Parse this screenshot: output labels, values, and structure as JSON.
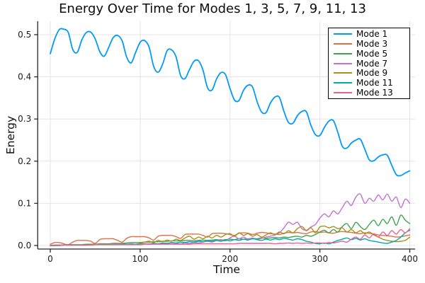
{
  "chart_data": {
    "type": "line",
    "title": "Energy Over Time for Modes 1, 3, 5, 7, 9, 11, 13",
    "xlabel": "Time",
    "ylabel": "Energy",
    "xlim": [
      -14,
      406
    ],
    "ylim": [
      -0.0084,
      0.532
    ],
    "xticks": [
      0,
      100,
      200,
      300,
      400
    ],
    "xtick_labels": [
      "0",
      "100",
      "200",
      "300",
      "400"
    ],
    "yticks": [
      0,
      0.1,
      0.2,
      0.3,
      0.4,
      0.5
    ],
    "ytick_labels": [
      "0.0",
      "0.1",
      "0.2",
      "0.3",
      "0.4",
      "0.5"
    ],
    "grid": true,
    "legend": {
      "position": "top-right"
    },
    "x": [
      0,
      5,
      10,
      15,
      20,
      25,
      30,
      35,
      40,
      45,
      50,
      55,
      60,
      65,
      70,
      75,
      80,
      85,
      90,
      95,
      100,
      105,
      110,
      115,
      120,
      125,
      130,
      135,
      140,
      145,
      150,
      155,
      160,
      165,
      170,
      175,
      180,
      185,
      190,
      195,
      200,
      205,
      210,
      215,
      220,
      225,
      230,
      235,
      240,
      245,
      250,
      255,
      260,
      265,
      270,
      275,
      280,
      285,
      290,
      295,
      300,
      305,
      310,
      315,
      320,
      325,
      330,
      335,
      340,
      345,
      350,
      355,
      360,
      365,
      370,
      375,
      380,
      385,
      390,
      395,
      400
    ],
    "series": [
      {
        "name": "Mode 1",
        "color": "#009AFA",
        "values": [
          0.455,
          0.49,
          0.512,
          0.513,
          0.505,
          0.465,
          0.458,
          0.487,
          0.505,
          0.506,
          0.49,
          0.46,
          0.449,
          0.47,
          0.493,
          0.498,
          0.485,
          0.447,
          0.433,
          0.458,
          0.482,
          0.486,
          0.47,
          0.425,
          0.411,
          0.43,
          0.462,
          0.464,
          0.447,
          0.403,
          0.396,
          0.418,
          0.437,
          0.438,
          0.415,
          0.374,
          0.369,
          0.395,
          0.41,
          0.405,
          0.372,
          0.345,
          0.344,
          0.368,
          0.38,
          0.376,
          0.342,
          0.317,
          0.315,
          0.338,
          0.352,
          0.351,
          0.318,
          0.292,
          0.29,
          0.308,
          0.318,
          0.317,
          0.285,
          0.263,
          0.261,
          0.28,
          0.295,
          0.296,
          0.268,
          0.235,
          0.231,
          0.243,
          0.25,
          0.252,
          0.228,
          0.203,
          0.201,
          0.21,
          0.215,
          0.214,
          0.19,
          0.168,
          0.166,
          0.172,
          0.177
        ]
      },
      {
        "name": "Mode 3",
        "color": "#E36F47",
        "values": [
          0.003,
          0.007,
          0.007,
          0.004,
          0.002,
          0.008,
          0.012,
          0.012,
          0.012,
          0.01,
          0.005,
          0.014,
          0.016,
          0.016,
          0.016,
          0.012,
          0.008,
          0.017,
          0.021,
          0.021,
          0.021,
          0.021,
          0.018,
          0.013,
          0.022,
          0.024,
          0.024,
          0.024,
          0.021,
          0.017,
          0.026,
          0.027,
          0.027,
          0.027,
          0.024,
          0.02,
          0.028,
          0.029,
          0.029,
          0.028,
          0.026,
          0.024,
          0.029,
          0.03,
          0.029,
          0.026,
          0.029,
          0.031,
          0.03,
          0.028,
          0.027,
          0.026,
          0.029,
          0.031,
          0.03,
          0.031,
          0.029,
          0.028,
          0.032,
          0.033,
          0.031,
          0.032,
          0.03,
          0.029,
          0.032,
          0.033,
          0.032,
          0.031,
          0.029,
          0.028,
          0.03,
          0.029,
          0.027,
          0.025,
          0.024,
          0.023,
          0.022,
          0.02,
          0.021,
          0.023,
          0.025
        ]
      },
      {
        "name": "Mode 5",
        "color": "#3DA44D",
        "values": [
          0.0,
          0.001,
          0.001,
          0.001,
          0.002,
          0.002,
          0.002,
          0.002,
          0.003,
          0.003,
          0.003,
          0.004,
          0.004,
          0.004,
          0.005,
          0.005,
          0.005,
          0.006,
          0.007,
          0.007,
          0.007,
          0.008,
          0.008,
          0.009,
          0.009,
          0.01,
          0.01,
          0.011,
          0.011,
          0.011,
          0.012,
          0.012,
          0.011,
          0.012,
          0.013,
          0.012,
          0.013,
          0.014,
          0.013,
          0.014,
          0.015,
          0.014,
          0.016,
          0.015,
          0.016,
          0.017,
          0.016,
          0.018,
          0.017,
          0.018,
          0.019,
          0.018,
          0.02,
          0.019,
          0.021,
          0.022,
          0.02,
          0.024,
          0.022,
          0.026,
          0.032,
          0.036,
          0.03,
          0.038,
          0.032,
          0.045,
          0.052,
          0.04,
          0.055,
          0.045,
          0.038,
          0.05,
          0.06,
          0.047,
          0.062,
          0.052,
          0.068,
          0.048,
          0.072,
          0.06,
          0.052
        ]
      },
      {
        "name": "Mode 7",
        "color": "#C371D2",
        "values": [
          0.0,
          0.0,
          0.0,
          0.001,
          0.001,
          0.001,
          0.001,
          0.001,
          0.001,
          0.002,
          0.002,
          0.002,
          0.002,
          0.002,
          0.003,
          0.003,
          0.003,
          0.003,
          0.004,
          0.003,
          0.004,
          0.004,
          0.004,
          0.005,
          0.004,
          0.005,
          0.005,
          0.006,
          0.005,
          0.004,
          0.006,
          0.005,
          0.007,
          0.006,
          0.008,
          0.01,
          0.008,
          0.012,
          0.014,
          0.011,
          0.018,
          0.022,
          0.016,
          0.02,
          0.015,
          0.018,
          0.014,
          0.017,
          0.02,
          0.022,
          0.025,
          0.03,
          0.042,
          0.055,
          0.05,
          0.055,
          0.04,
          0.036,
          0.044,
          0.05,
          0.065,
          0.075,
          0.068,
          0.082,
          0.075,
          0.09,
          0.105,
          0.095,
          0.115,
          0.122,
          0.1,
          0.112,
          0.105,
          0.12,
          0.108,
          0.122,
          0.105,
          0.115,
          0.09,
          0.11,
          0.1
        ]
      },
      {
        "name": "Mode 9",
        "color": "#AC8E18",
        "values": [
          0.0,
          0.0,
          0.001,
          0.001,
          0.001,
          0.001,
          0.001,
          0.001,
          0.001,
          0.002,
          0.002,
          0.002,
          0.002,
          0.002,
          0.002,
          0.002,
          0.002,
          0.002,
          0.002,
          0.003,
          0.005,
          0.008,
          0.01,
          0.007,
          0.012,
          0.009,
          0.013,
          0.01,
          0.015,
          0.012,
          0.018,
          0.022,
          0.015,
          0.02,
          0.016,
          0.022,
          0.018,
          0.024,
          0.02,
          0.026,
          0.028,
          0.022,
          0.03,
          0.024,
          0.028,
          0.022,
          0.026,
          0.02,
          0.025,
          0.03,
          0.026,
          0.032,
          0.028,
          0.035,
          0.03,
          0.04,
          0.045,
          0.035,
          0.042,
          0.03,
          0.044,
          0.046,
          0.042,
          0.045,
          0.04,
          0.042,
          0.032,
          0.038,
          0.03,
          0.035,
          0.028,
          0.032,
          0.025,
          0.02,
          0.015,
          0.012,
          0.01,
          0.009,
          0.01,
          0.012,
          0.02
        ]
      },
      {
        "name": "Mode 11",
        "color": "#00AAAE",
        "values": [
          0.0,
          0.0,
          0.0,
          0.001,
          0.001,
          0.001,
          0.001,
          0.001,
          0.001,
          0.001,
          0.002,
          0.002,
          0.002,
          0.002,
          0.002,
          0.002,
          0.003,
          0.003,
          0.003,
          0.003,
          0.003,
          0.004,
          0.003,
          0.005,
          0.004,
          0.006,
          0.005,
          0.007,
          0.006,
          0.008,
          0.007,
          0.009,
          0.008,
          0.01,
          0.009,
          0.011,
          0.01,
          0.012,
          0.01,
          0.013,
          0.011,
          0.014,
          0.012,
          0.015,
          0.013,
          0.016,
          0.014,
          0.012,
          0.015,
          0.013,
          0.016,
          0.014,
          0.017,
          0.015,
          0.013,
          0.016,
          0.014,
          0.01,
          0.008,
          0.005,
          0.004,
          0.006,
          0.004,
          0.008,
          0.012,
          0.015,
          0.018,
          0.014,
          0.017,
          0.013,
          0.016,
          0.012,
          0.01,
          0.008,
          0.006,
          0.005,
          0.008,
          0.012,
          0.02,
          0.03,
          0.036
        ]
      },
      {
        "name": "Mode 13",
        "color": "#ED5E93",
        "values": [
          0.001,
          0.001,
          0.001,
          0.001,
          0.001,
          0.001,
          0.001,
          0.001,
          0.001,
          0.001,
          0.002,
          0.002,
          0.002,
          0.002,
          0.002,
          0.002,
          0.002,
          0.002,
          0.002,
          0.002,
          0.002,
          0.003,
          0.003,
          0.003,
          0.003,
          0.003,
          0.003,
          0.003,
          0.003,
          0.003,
          0.003,
          0.003,
          0.004,
          0.004,
          0.004,
          0.004,
          0.004,
          0.004,
          0.004,
          0.004,
          0.004,
          0.004,
          0.005,
          0.005,
          0.005,
          0.005,
          0.005,
          0.005,
          0.005,
          0.005,
          0.004,
          0.005,
          0.005,
          0.006,
          0.005,
          0.006,
          0.005,
          0.006,
          0.005,
          0.006,
          0.006,
          0.005,
          0.007,
          0.006,
          0.008,
          0.01,
          0.008,
          0.015,
          0.02,
          0.015,
          0.025,
          0.018,
          0.028,
          0.02,
          0.032,
          0.024,
          0.035,
          0.027,
          0.038,
          0.03,
          0.04
        ]
      }
    ]
  },
  "colors": {
    "background": "#ffffff",
    "grid": "#e5e5e5",
    "axis": "#262626",
    "tick_text": "#1a1a1a",
    "legend_border": "#000000"
  }
}
